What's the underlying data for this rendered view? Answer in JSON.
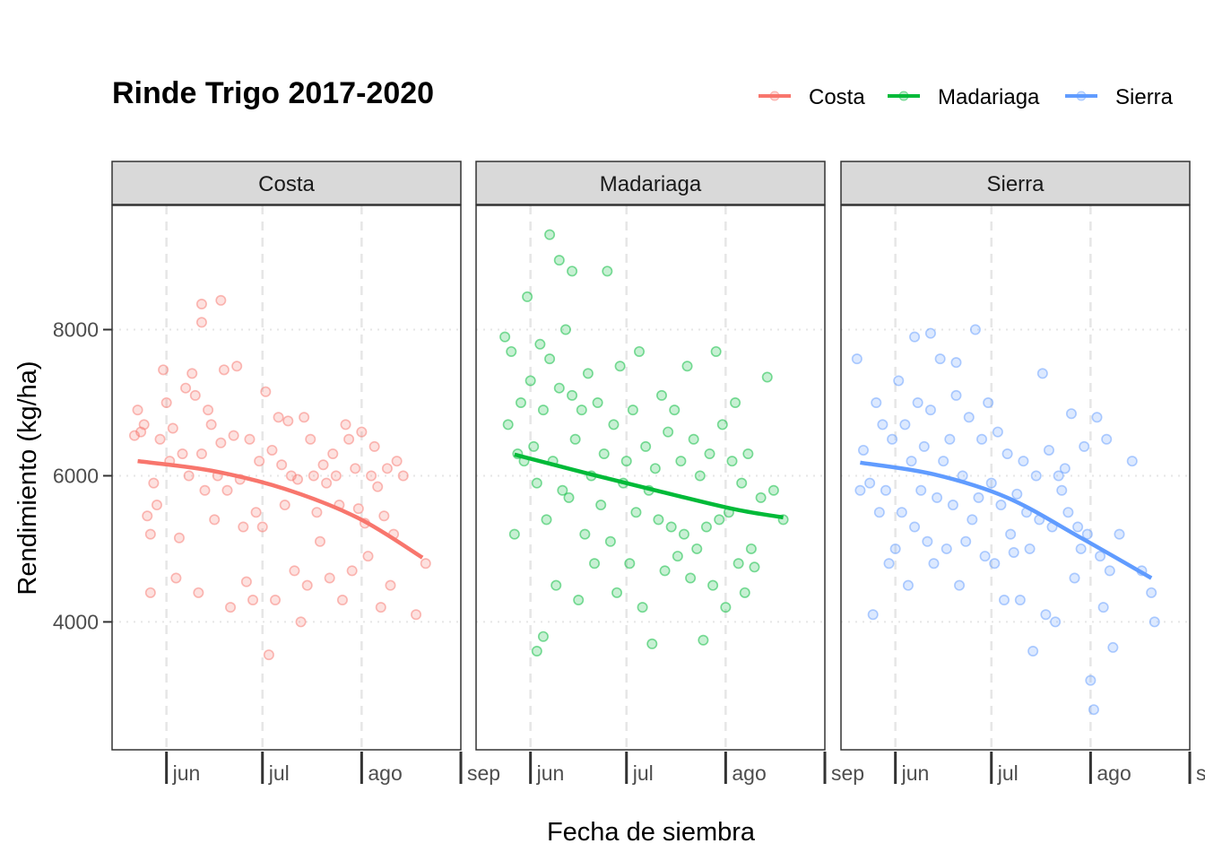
{
  "chart_data": {
    "type": "scatter",
    "title": "Rinde Trigo 2017-2020",
    "xlabel": "Fecha de siembra",
    "ylabel": "Rendimiento (kg/ha)",
    "x_unit": "date (day-month)",
    "xlim": [
      "05-15",
      "09-01"
    ],
    "ylim": [
      2250,
      9700
    ],
    "y_ticks": [
      4000,
      6000,
      8000
    ],
    "x_ticks": [
      {
        "date": "06-01",
        "label": "jun"
      },
      {
        "date": "07-01",
        "label": "jul"
      },
      {
        "date": "08-01",
        "label": "ago"
      },
      {
        "date": "09-01",
        "label": "sep"
      }
    ],
    "legend": {
      "position": "top-right",
      "entries": [
        "Costa",
        "Madariaga",
        "Sierra"
      ]
    },
    "grid": true,
    "facets": [
      {
        "name": "Costa",
        "color": "#F8766D",
        "points": [
          [
            "05-22",
            6550
          ],
          [
            "05-23",
            6900
          ],
          [
            "05-24",
            6600
          ],
          [
            "05-25",
            6700
          ],
          [
            "05-26",
            5450
          ],
          [
            "05-27",
            5200
          ],
          [
            "05-27",
            4400
          ],
          [
            "05-28",
            5900
          ],
          [
            "05-29",
            5600
          ],
          [
            "05-30",
            6500
          ],
          [
            "05-31",
            7450
          ],
          [
            "06-01",
            7000
          ],
          [
            "06-02",
            6200
          ],
          [
            "06-03",
            6650
          ],
          [
            "06-04",
            4600
          ],
          [
            "06-05",
            5150
          ],
          [
            "06-06",
            6300
          ],
          [
            "06-07",
            7200
          ],
          [
            "06-08",
            6000
          ],
          [
            "06-09",
            7400
          ],
          [
            "06-10",
            7100
          ],
          [
            "06-11",
            4400
          ],
          [
            "06-12",
            6300
          ],
          [
            "06-13",
            5800
          ],
          [
            "06-14",
            6900
          ],
          [
            "06-15",
            6700
          ],
          [
            "06-16",
            5400
          ],
          [
            "06-17",
            6000
          ],
          [
            "06-18",
            6450
          ],
          [
            "06-19",
            7450
          ],
          [
            "06-20",
            5800
          ],
          [
            "06-21",
            4200
          ],
          [
            "06-22",
            6550
          ],
          [
            "06-23",
            7500
          ],
          [
            "06-24",
            5950
          ],
          [
            "06-25",
            5300
          ],
          [
            "06-26",
            4550
          ],
          [
            "06-27",
            6500
          ],
          [
            "06-28",
            4300
          ],
          [
            "06-29",
            5500
          ],
          [
            "06-30",
            6200
          ],
          [
            "07-01",
            5300
          ],
          [
            "07-02",
            7150
          ],
          [
            "07-03",
            3550
          ],
          [
            "07-04",
            6350
          ],
          [
            "07-05",
            4300
          ],
          [
            "07-06",
            6800
          ],
          [
            "07-07",
            6150
          ],
          [
            "07-08",
            5600
          ],
          [
            "07-09",
            6750
          ],
          [
            "07-10",
            6000
          ],
          [
            "07-11",
            4700
          ],
          [
            "07-12",
            5950
          ],
          [
            "07-13",
            4000
          ],
          [
            "07-14",
            6800
          ],
          [
            "07-15",
            4500
          ],
          [
            "07-16",
            6500
          ],
          [
            "07-17",
            6000
          ],
          [
            "07-18",
            5500
          ],
          [
            "07-19",
            5100
          ],
          [
            "07-20",
            6150
          ],
          [
            "07-21",
            5900
          ],
          [
            "07-22",
            4600
          ],
          [
            "07-23",
            6300
          ],
          [
            "07-24",
            6000
          ],
          [
            "07-25",
            5600
          ],
          [
            "07-26",
            4300
          ],
          [
            "07-27",
            6700
          ],
          [
            "07-28",
            6500
          ],
          [
            "07-29",
            4700
          ],
          [
            "07-30",
            6100
          ],
          [
            "07-31",
            5550
          ],
          [
            "08-01",
            6600
          ],
          [
            "08-02",
            5350
          ],
          [
            "08-03",
            4900
          ],
          [
            "08-04",
            6000
          ],
          [
            "08-05",
            6400
          ],
          [
            "08-06",
            5850
          ],
          [
            "08-07",
            4200
          ],
          [
            "08-08",
            5450
          ],
          [
            "08-09",
            6100
          ],
          [
            "08-10",
            4500
          ],
          [
            "08-11",
            5200
          ],
          [
            "08-12",
            6200
          ],
          [
            "08-14",
            6000
          ],
          [
            "08-18",
            4100
          ],
          [
            "08-21",
            4800
          ],
          [
            "06-12",
            8350
          ],
          [
            "06-18",
            8400
          ],
          [
            "06-12",
            8100
          ]
        ],
        "trend": [
          [
            "05-23",
            6200
          ],
          [
            "06-15",
            6070
          ],
          [
            "07-08",
            5820
          ],
          [
            "07-31",
            5420
          ],
          [
            "08-20",
            4880
          ]
        ]
      },
      {
        "name": "Madariaga",
        "color": "#00BA38",
        "points": [
          [
            "05-24",
            7900
          ],
          [
            "05-25",
            6700
          ],
          [
            "05-26",
            7700
          ],
          [
            "05-27",
            5200
          ],
          [
            "05-28",
            6300
          ],
          [
            "05-29",
            7000
          ],
          [
            "05-30",
            6200
          ],
          [
            "05-31",
            8450
          ],
          [
            "06-01",
            7300
          ],
          [
            "06-02",
            6400
          ],
          [
            "06-03",
            5900
          ],
          [
            "06-04",
            7800
          ],
          [
            "06-05",
            6900
          ],
          [
            "06-06",
            5400
          ],
          [
            "06-07",
            7600
          ],
          [
            "06-08",
            6200
          ],
          [
            "06-09",
            4500
          ],
          [
            "06-10",
            7200
          ],
          [
            "06-11",
            5800
          ],
          [
            "06-12",
            8000
          ],
          [
            "06-13",
            5700
          ],
          [
            "06-14",
            7100
          ],
          [
            "06-15",
            6500
          ],
          [
            "06-16",
            4300
          ],
          [
            "06-17",
            6900
          ],
          [
            "06-18",
            5200
          ],
          [
            "06-19",
            7400
          ],
          [
            "06-20",
            6000
          ],
          [
            "06-21",
            4800
          ],
          [
            "06-22",
            7000
          ],
          [
            "06-23",
            5600
          ],
          [
            "06-24",
            6300
          ],
          [
            "06-25",
            8800
          ],
          [
            "06-26",
            5100
          ],
          [
            "06-27",
            6700
          ],
          [
            "06-28",
            4400
          ],
          [
            "06-29",
            7500
          ],
          [
            "06-30",
            5900
          ],
          [
            "07-01",
            6200
          ],
          [
            "07-02",
            4800
          ],
          [
            "07-03",
            6900
          ],
          [
            "07-04",
            5500
          ],
          [
            "07-05",
            7700
          ],
          [
            "07-06",
            4200
          ],
          [
            "07-07",
            6400
          ],
          [
            "07-08",
            5800
          ],
          [
            "07-09",
            3700
          ],
          [
            "07-10",
            6100
          ],
          [
            "07-11",
            5400
          ],
          [
            "07-12",
            7100
          ],
          [
            "07-13",
            4700
          ],
          [
            "07-14",
            6600
          ],
          [
            "07-15",
            5300
          ],
          [
            "07-16",
            6900
          ],
          [
            "07-17",
            4900
          ],
          [
            "07-18",
            6200
          ],
          [
            "07-19",
            5200
          ],
          [
            "07-20",
            7500
          ],
          [
            "07-21",
            4600
          ],
          [
            "07-22",
            6500
          ],
          [
            "07-23",
            5000
          ],
          [
            "07-24",
            6000
          ],
          [
            "07-25",
            3750
          ],
          [
            "07-26",
            5300
          ],
          [
            "07-27",
            6300
          ],
          [
            "07-28",
            4500
          ],
          [
            "07-29",
            7700
          ],
          [
            "07-30",
            5400
          ],
          [
            "07-31",
            6700
          ],
          [
            "08-01",
            4200
          ],
          [
            "08-02",
            5500
          ],
          [
            "08-03",
            6200
          ],
          [
            "08-04",
            7000
          ],
          [
            "08-05",
            4800
          ],
          [
            "08-06",
            5900
          ],
          [
            "08-07",
            4400
          ],
          [
            "08-08",
            6300
          ],
          [
            "08-09",
            5000
          ],
          [
            "08-10",
            4750
          ],
          [
            "08-12",
            5700
          ],
          [
            "08-14",
            7350
          ],
          [
            "08-16",
            5800
          ],
          [
            "08-19",
            5400
          ],
          [
            "06-07",
            9300
          ],
          [
            "06-10",
            8950
          ],
          [
            "06-14",
            8800
          ],
          [
            "06-03",
            3600
          ],
          [
            "06-05",
            3800
          ]
        ],
        "trend": [
          [
            "05-27",
            6290
          ],
          [
            "06-19",
            6030
          ],
          [
            "07-12",
            5780
          ],
          [
            "08-04",
            5540
          ],
          [
            "08-19",
            5430
          ]
        ]
      },
      {
        "name": "Sierra",
        "color": "#619CFF",
        "points": [
          [
            "05-20",
            7600
          ],
          [
            "05-21",
            5800
          ],
          [
            "05-22",
            6350
          ],
          [
            "05-24",
            5900
          ],
          [
            "05-25",
            4100
          ],
          [
            "05-26",
            7000
          ],
          [
            "05-27",
            5500
          ],
          [
            "05-28",
            6700
          ],
          [
            "05-29",
            5800
          ],
          [
            "05-30",
            4800
          ],
          [
            "05-31",
            6500
          ],
          [
            "06-01",
            5000
          ],
          [
            "06-02",
            7300
          ],
          [
            "06-03",
            5500
          ],
          [
            "06-04",
            6700
          ],
          [
            "06-05",
            4500
          ],
          [
            "06-06",
            6200
          ],
          [
            "06-07",
            5300
          ],
          [
            "06-08",
            7000
          ],
          [
            "06-09",
            5800
          ],
          [
            "06-10",
            6400
          ],
          [
            "06-11",
            5100
          ],
          [
            "06-12",
            6900
          ],
          [
            "06-13",
            4800
          ],
          [
            "06-14",
            5700
          ],
          [
            "06-15",
            7600
          ],
          [
            "06-16",
            6200
          ],
          [
            "06-17",
            5000
          ],
          [
            "06-18",
            6500
          ],
          [
            "06-19",
            5600
          ],
          [
            "06-20",
            7100
          ],
          [
            "06-21",
            4500
          ],
          [
            "06-22",
            6000
          ],
          [
            "06-23",
            5100
          ],
          [
            "06-24",
            6800
          ],
          [
            "06-25",
            5400
          ],
          [
            "06-26",
            8000
          ],
          [
            "06-27",
            5700
          ],
          [
            "06-28",
            6500
          ],
          [
            "06-29",
            4900
          ],
          [
            "06-30",
            7000
          ],
          [
            "07-01",
            5900
          ],
          [
            "07-02",
            4800
          ],
          [
            "07-03",
            6600
          ],
          [
            "07-04",
            5600
          ],
          [
            "07-05",
            4300
          ],
          [
            "07-06",
            6300
          ],
          [
            "07-07",
            5200
          ],
          [
            "07-08",
            4950
          ],
          [
            "07-09",
            5750
          ],
          [
            "07-10",
            4300
          ],
          [
            "07-11",
            6200
          ],
          [
            "07-12",
            5500
          ],
          [
            "07-13",
            5000
          ],
          [
            "07-14",
            3600
          ],
          [
            "07-15",
            6000
          ],
          [
            "07-16",
            5400
          ],
          [
            "07-17",
            7400
          ],
          [
            "07-18",
            4100
          ],
          [
            "07-19",
            6350
          ],
          [
            "07-20",
            5300
          ],
          [
            "07-21",
            4000
          ],
          [
            "07-22",
            6000
          ],
          [
            "07-23",
            5800
          ],
          [
            "07-24",
            6100
          ],
          [
            "07-25",
            5500
          ],
          [
            "07-26",
            6850
          ],
          [
            "07-27",
            4600
          ],
          [
            "07-28",
            5300
          ],
          [
            "07-29",
            5000
          ],
          [
            "07-30",
            6400
          ],
          [
            "07-31",
            5200
          ],
          [
            "08-01",
            3200
          ],
          [
            "08-02",
            2800
          ],
          [
            "08-03",
            6800
          ],
          [
            "08-04",
            4900
          ],
          [
            "08-05",
            4200
          ],
          [
            "08-06",
            6500
          ],
          [
            "08-07",
            4700
          ],
          [
            "08-08",
            3650
          ],
          [
            "08-10",
            5200
          ],
          [
            "08-14",
            6200
          ],
          [
            "08-17",
            4700
          ],
          [
            "08-20",
            4400
          ],
          [
            "08-21",
            4000
          ],
          [
            "06-07",
            7900
          ],
          [
            "06-12",
            7950
          ],
          [
            "06-20",
            7550
          ]
        ],
        "trend": [
          [
            "05-21",
            6180
          ],
          [
            "06-13",
            6020
          ],
          [
            "07-06",
            5700
          ],
          [
            "07-29",
            5150
          ],
          [
            "08-20",
            4600
          ]
        ]
      }
    ]
  }
}
